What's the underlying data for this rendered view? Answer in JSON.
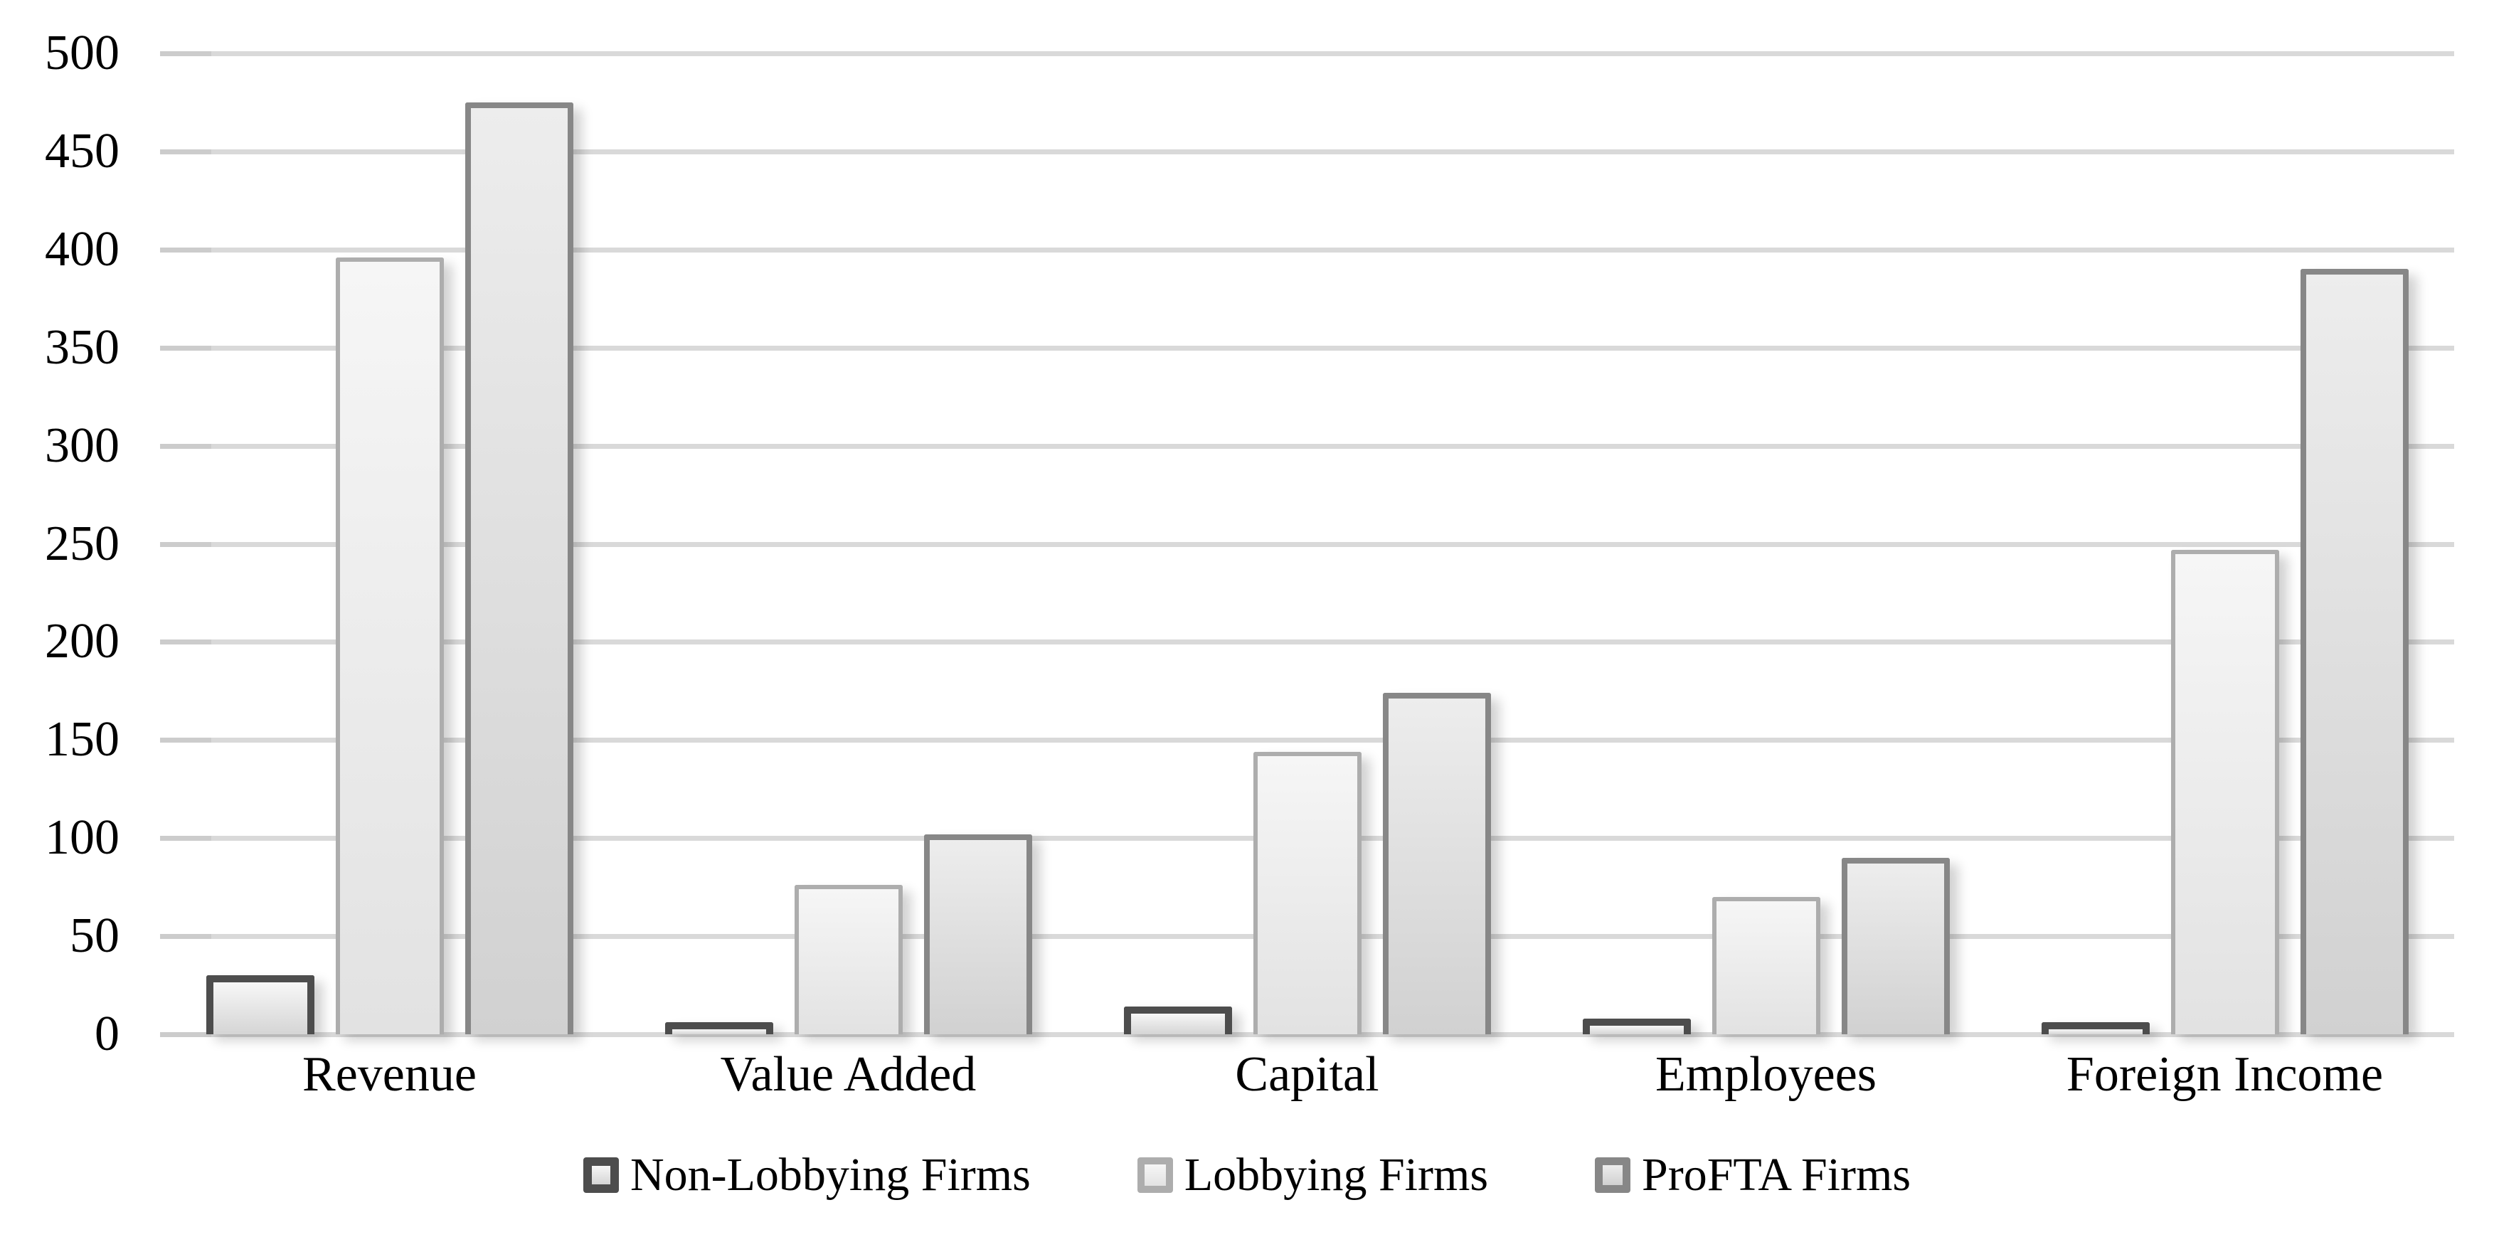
{
  "chart_data": {
    "type": "bar",
    "title": "",
    "categories": [
      "Revenue",
      "Value Added",
      "Capital",
      "Employees",
      "Foreign Income"
    ],
    "series": [
      {
        "name": "Non-Lobbying Firms",
        "values": [
          30,
          6,
          14,
          8,
          6
        ],
        "border_color": "#4d4d4d",
        "fill_top": "#f7f7f7",
        "fill_bottom": "#d5d5d5"
      },
      {
        "name": "Lobbying Firms",
        "values": [
          396,
          76,
          144,
          70,
          247
        ],
        "border_color": "#adadad",
        "fill_top": "#f6f6f6",
        "fill_bottom": "#e2e2e2"
      },
      {
        "name": "ProFTA Firms",
        "values": [
          475,
          102,
          174,
          90,
          390
        ],
        "border_color": "#878787",
        "fill_top": "#ededed",
        "fill_bottom": "#d1d1d1"
      }
    ],
    "xlabel": "",
    "ylabel": "",
    "ylim": [
      0,
      500
    ],
    "y_tick_step": 50,
    "y_ticks": [
      "500",
      "450",
      "400",
      "350",
      "300",
      "250",
      "200",
      "150",
      "100",
      "50",
      "0"
    ],
    "grid": true,
    "gridline_color": "#d9d9d9",
    "axis_text_color": "#000000",
    "legend_position": "bottom"
  }
}
